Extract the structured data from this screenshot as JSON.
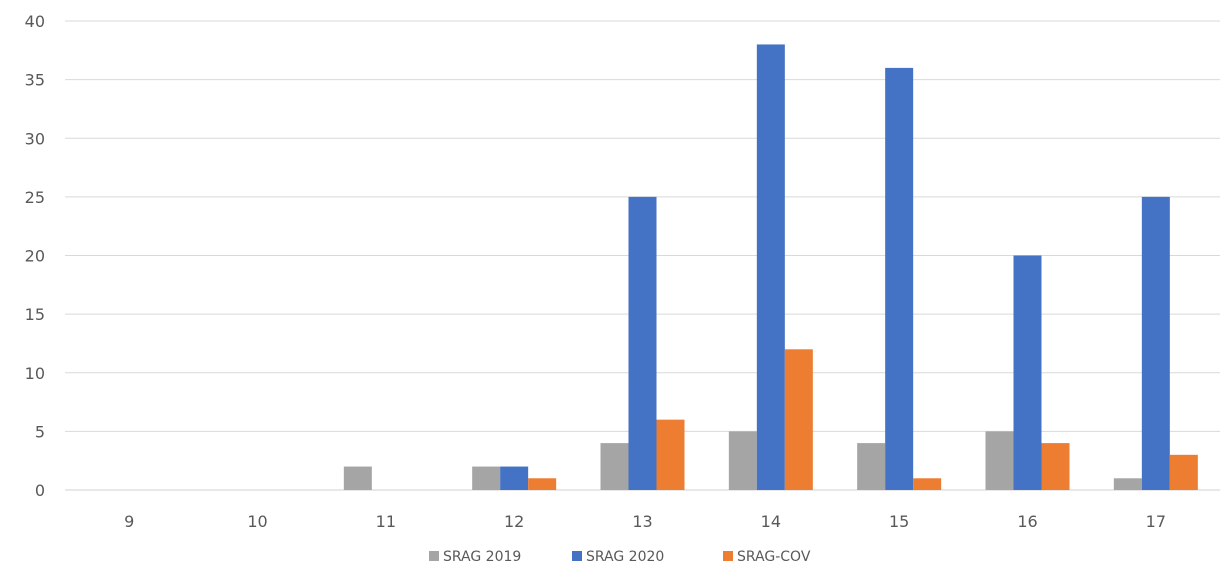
{
  "chart_data": {
    "type": "bar",
    "title": "",
    "xlabel": "",
    "ylabel": "",
    "categories": [
      "9",
      "10",
      "11",
      "12",
      "13",
      "14",
      "15",
      "16",
      "17"
    ],
    "ylim": [
      0,
      40
    ],
    "yticks": [
      "0",
      "5",
      "10",
      "15",
      "20",
      "25",
      "30",
      "35",
      "40"
    ],
    "grid": true,
    "legend_position": "bottom",
    "series": [
      {
        "name": "SRAG 2019",
        "color": "#A5A5A5",
        "values": [
          0,
          0,
          2,
          2,
          4,
          5,
          4,
          5,
          1
        ]
      },
      {
        "name": "SRAG 2020",
        "color": "#4472C4",
        "values": [
          0,
          0,
          0,
          2,
          25,
          38,
          36,
          20,
          25
        ]
      },
      {
        "name": "SRAG-COV",
        "color": "#ED7D31",
        "values": [
          0,
          0,
          0,
          1,
          6,
          12,
          1,
          4,
          3
        ]
      }
    ]
  }
}
